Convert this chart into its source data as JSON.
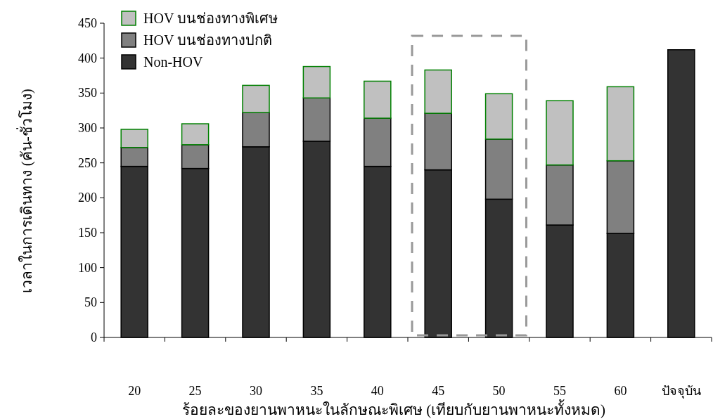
{
  "chart_data": {
    "type": "bar",
    "stacked": true,
    "categories": [
      "20",
      "25",
      "30",
      "35",
      "40",
      "45",
      "50",
      "55",
      "60",
      "ปัจจุบัน"
    ],
    "series": [
      {
        "name": "Non-HOV",
        "color": "#333333",
        "values": [
          245,
          242,
          273,
          281,
          245,
          240,
          198,
          161,
          149,
          412
        ]
      },
      {
        "name": "HOV บนช่องทางปกติ",
        "color": "#808080",
        "values": [
          27,
          34,
          49,
          62,
          69,
          81,
          86,
          86,
          104,
          null
        ]
      },
      {
        "name": "HOV บนช่องทางพิเศษ",
        "color": "#c0c0c0",
        "values": [
          26,
          30,
          39,
          45,
          53,
          62,
          65,
          92,
          106,
          null
        ]
      }
    ],
    "ylim": [
      0,
      450
    ],
    "yticks": [
      0,
      50,
      100,
      150,
      200,
      250,
      300,
      350,
      400,
      450
    ],
    "xlabel": "ร้อยละของยานพาหนะในลักษณะพิเศษ (เทียบกับยานพาหนะทั้งหมด)",
    "ylabel": "เวลาในการเดินทาง (คัน-ชั่วโมง)",
    "legend": "top left",
    "grid": false
  }
}
